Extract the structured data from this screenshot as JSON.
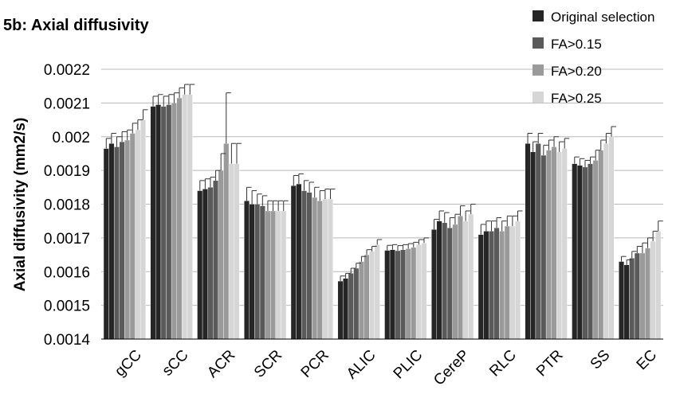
{
  "chart_data": {
    "type": "bar",
    "title": "5b: Axial diffusivity",
    "xlabel": "",
    "ylabel": "Axial diffusivity (mm2/s)",
    "ylim": [
      0.0014,
      0.0022
    ],
    "yticks": [
      "0.0014",
      "0.0015",
      "0.0016",
      "0.0017",
      "0.0018",
      "0.0019",
      "0.002",
      "0.0021",
      "0.0022"
    ],
    "grid": true,
    "legend_position": "top-right",
    "categories": [
      "gCC",
      "sCC",
      "ACR",
      "SCR",
      "PCR",
      "ALIC",
      "PLIC",
      "CereP",
      "RLC",
      "PTR",
      "SS",
      "EC"
    ],
    "colors": [
      "#262626",
      "#5a5a5a",
      "#9a9a9a",
      "#d6d6d6"
    ],
    "series": [
      {
        "name": "Original selection",
        "values": [
          [
            0.001965,
            0.00198
          ],
          [
            0.00209,
            0.002095
          ],
          [
            0.00184,
            0.001845
          ],
          [
            0.00181,
            0.0018
          ],
          [
            0.001855,
            0.00186
          ],
          [
            0.001572,
            0.00158
          ],
          [
            0.001663,
            0.001665
          ],
          [
            0.001725,
            0.00175
          ],
          [
            0.00171,
            0.00172
          ],
          [
            0.00198,
            0.001955
          ],
          [
            0.00192,
            0.001915
          ],
          [
            0.00163,
            0.00162
          ]
        ],
        "errors": [
          [
            3e-05,
            3e-05
          ],
          [
            3e-05,
            3e-05
          ],
          [
            3e-05,
            3e-05
          ],
          [
            4e-05,
            4e-05
          ],
          [
            3e-05,
            3e-05
          ],
          [
            1.5e-05,
            1.5e-05
          ],
          [
            1.5e-05,
            1.5e-05
          ],
          [
            3e-05,
            3e-05
          ],
          [
            3e-05,
            3e-05
          ],
          [
            3e-05,
            3e-05
          ],
          [
            2e-05,
            2e-05
          ],
          [
            1.5e-05,
            1.5e-05
          ]
        ]
      },
      {
        "name": "FA>0.15",
        "values": [
          [
            0.00197,
            0.001985
          ],
          [
            0.00209,
            0.002095
          ],
          [
            0.00185,
            0.00187
          ],
          [
            0.0018,
            0.001795
          ],
          [
            0.00184,
            0.001835
          ],
          [
            0.001595,
            0.00161
          ],
          [
            0.001662,
            0.001665
          ],
          [
            0.001745,
            0.00173
          ],
          [
            0.00172,
            0.00173
          ],
          [
            0.00198,
            0.001945
          ],
          [
            0.00191,
            0.00192
          ],
          [
            0.00164,
            0.001655
          ]
        ],
        "errors": [
          [
            3e-05,
            3e-05
          ],
          [
            3e-05,
            3e-05
          ],
          [
            3e-05,
            3e-05
          ],
          [
            3e-05,
            3e-05
          ],
          [
            3e-05,
            3e-05
          ],
          [
            1.5e-05,
            1.5e-05
          ],
          [
            1.5e-05,
            1.5e-05
          ],
          [
            3e-05,
            3e-05
          ],
          [
            3e-05,
            3e-05
          ],
          [
            3e-05,
            3e-05
          ],
          [
            2e-05,
            2e-05
          ],
          [
            2e-05,
            2e-05
          ]
        ]
      },
      {
        "name": "FA>0.20",
        "values": [
          [
            0.00199,
            0.00201
          ],
          [
            0.0021,
            0.002115
          ],
          [
            0.0019,
            0.00198
          ],
          [
            0.00178,
            0.00178
          ],
          [
            0.00182,
            0.00181
          ],
          [
            0.00163,
            0.00165
          ],
          [
            0.001668,
            0.001672
          ],
          [
            0.00174,
            0.001765
          ],
          [
            0.00172,
            0.001735
          ],
          [
            0.00196,
            0.00197
          ],
          [
            0.00193,
            0.00196
          ],
          [
            0.001655,
            0.00167
          ]
        ],
        "errors": [
          [
            3e-05,
            3e-05
          ],
          [
            3e-05,
            3e-05
          ],
          [
            5e-05,
            0.00015
          ],
          [
            3e-05,
            3e-05
          ],
          [
            3e-05,
            3e-05
          ],
          [
            1.5e-05,
            1.5e-05
          ],
          [
            1.5e-05,
            1.5e-05
          ],
          [
            3e-05,
            3e-05
          ],
          [
            3e-05,
            3e-05
          ],
          [
            3e-05,
            3e-05
          ],
          [
            3e-05,
            3e-05
          ],
          [
            3e-05,
            3e-05
          ]
        ]
      },
      {
        "name": "FA>0.25",
        "values": [
          [
            0.00202,
            0.00205
          ],
          [
            0.002125,
            0.002125
          ],
          [
            0.00192,
            0.00192
          ],
          [
            0.00178,
            0.00178
          ],
          [
            0.001815,
            0.001815
          ],
          [
            0.00166,
            0.00168
          ],
          [
            0.00168,
            0.001685
          ],
          [
            0.00175,
            0.00177
          ],
          [
            0.001735,
            0.00175
          ],
          [
            0.001955,
            0.001965
          ],
          [
            0.00198,
            0.002
          ],
          [
            0.00169,
            0.00172
          ]
        ],
        "errors": [
          [
            3e-05,
            3e-05
          ],
          [
            3e-05,
            3e-05
          ],
          [
            6e-05,
            6e-05
          ],
          [
            3e-05,
            3e-05
          ],
          [
            3e-05,
            3e-05
          ],
          [
            1.5e-05,
            1.5e-05
          ],
          [
            1.5e-05,
            1.5e-05
          ],
          [
            3e-05,
            3e-05
          ],
          [
            3e-05,
            3e-05
          ],
          [
            3e-05,
            3e-05
          ],
          [
            3e-05,
            3e-05
          ],
          [
            3e-05,
            3e-05
          ]
        ]
      }
    ]
  }
}
